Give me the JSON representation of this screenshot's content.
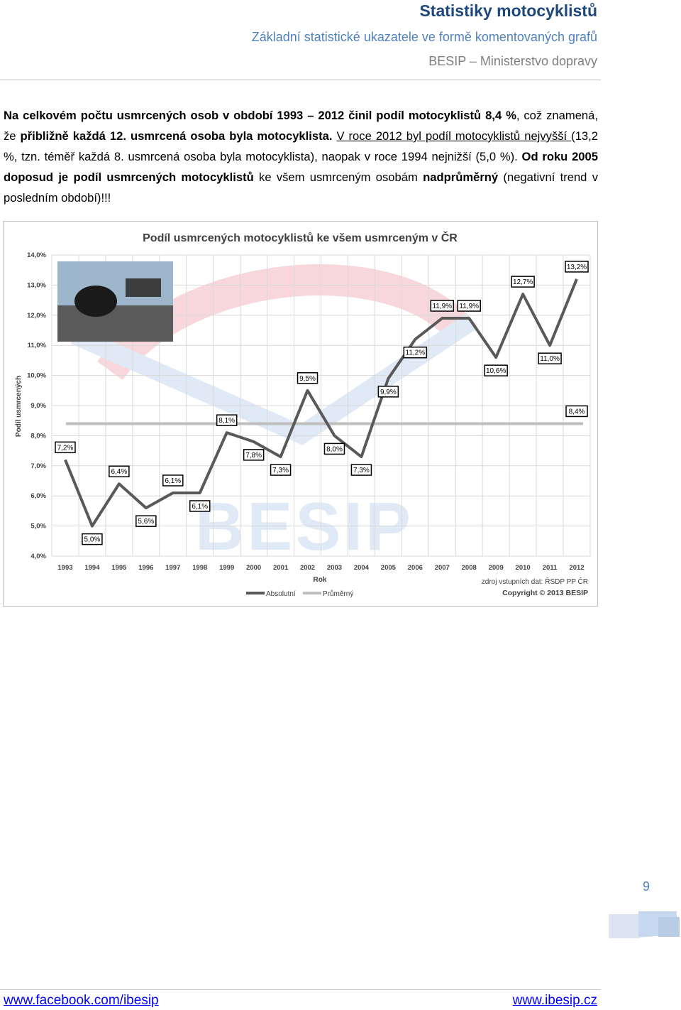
{
  "header": {
    "title": "Statistiky motocyklistů",
    "subtitle": "Základní statistické ukazatele ve formě komentovaných grafů",
    "org": "BESIP – Ministerstvo dopravy"
  },
  "paragraph": {
    "s1": "Na celkovém počtu usmrcených osob v období 1993 – 2012 činil podíl motocyklistů 8,4 %",
    "s2": ", což znamená, že ",
    "s3": "přibližně každá 12. usmrcená osoba byla motocyklista.",
    "s4": " ",
    "s5": "V roce 2012 byl podíl motocyklistů nejvyšší ",
    "s6": "(13,2 %, tzn. téměř každá 8. usmrcená osoba byla motocyklista), naopak v roce 1994 nejnižší (5,0 %). ",
    "s7": "Od roku 2005 doposud je podíl usmrcených motocyklistů",
    "s8": " ke všem usmrceným osobám ",
    "s9": "nadprůměrný",
    "s10": " (negativní trend v posledním období)!!!"
  },
  "chart_data": {
    "type": "line",
    "title": "Podíl usmrcených motocyklistů ke všem usmrceným v ČR",
    "xlabel": "Rok",
    "ylabel": "Podíl usmrcených",
    "ylim": [
      4.0,
      14.0
    ],
    "y_ticks": [
      "4,0%",
      "5,0%",
      "6,0%",
      "7,0%",
      "8,0%",
      "9,0%",
      "10,0%",
      "11,0%",
      "12,0%",
      "13,0%",
      "14,0%"
    ],
    "x": [
      "1993",
      "1994",
      "1995",
      "1996",
      "1997",
      "1998",
      "1999",
      "2000",
      "2001",
      "2002",
      "2003",
      "2004",
      "2005",
      "2006",
      "2007",
      "2008",
      "2009",
      "2010",
      "2011",
      "2012"
    ],
    "series": [
      {
        "name": "Absolutní",
        "color": "#595959",
        "values": [
          7.2,
          5.0,
          6.4,
          5.6,
          6.1,
          6.1,
          8.1,
          7.8,
          7.3,
          9.5,
          8.0,
          7.3,
          9.9,
          11.2,
          11.9,
          11.9,
          10.6,
          12.7,
          11.0,
          13.2
        ],
        "labels": [
          "7,2%",
          "5,0%",
          "6,4%",
          "5,6%",
          "6,1%",
          "6,1%",
          "8,1%",
          "7,8%",
          "7,3%",
          "9,5%",
          "8,0%",
          "7,3%",
          "9,9%",
          "11,2%",
          "11,9%",
          "11,9%",
          "10,6%",
          "12,7%",
          "11,0%",
          "13,2%"
        ]
      },
      {
        "name": "Průměrný",
        "color": "#bfbfbf",
        "value": 8.4,
        "label": "8,4%"
      }
    ],
    "legend_position": "bottom-left",
    "grid": true,
    "source": "zdroj vstupních dat: ŘSDP PP ČR",
    "copyright": "Copyright © 2013 BESIP",
    "watermark": "BESIP"
  },
  "page_number": "9",
  "footer": {
    "left": "www.facebook.com/ibesip",
    "right": "www.ibesip.cz"
  }
}
